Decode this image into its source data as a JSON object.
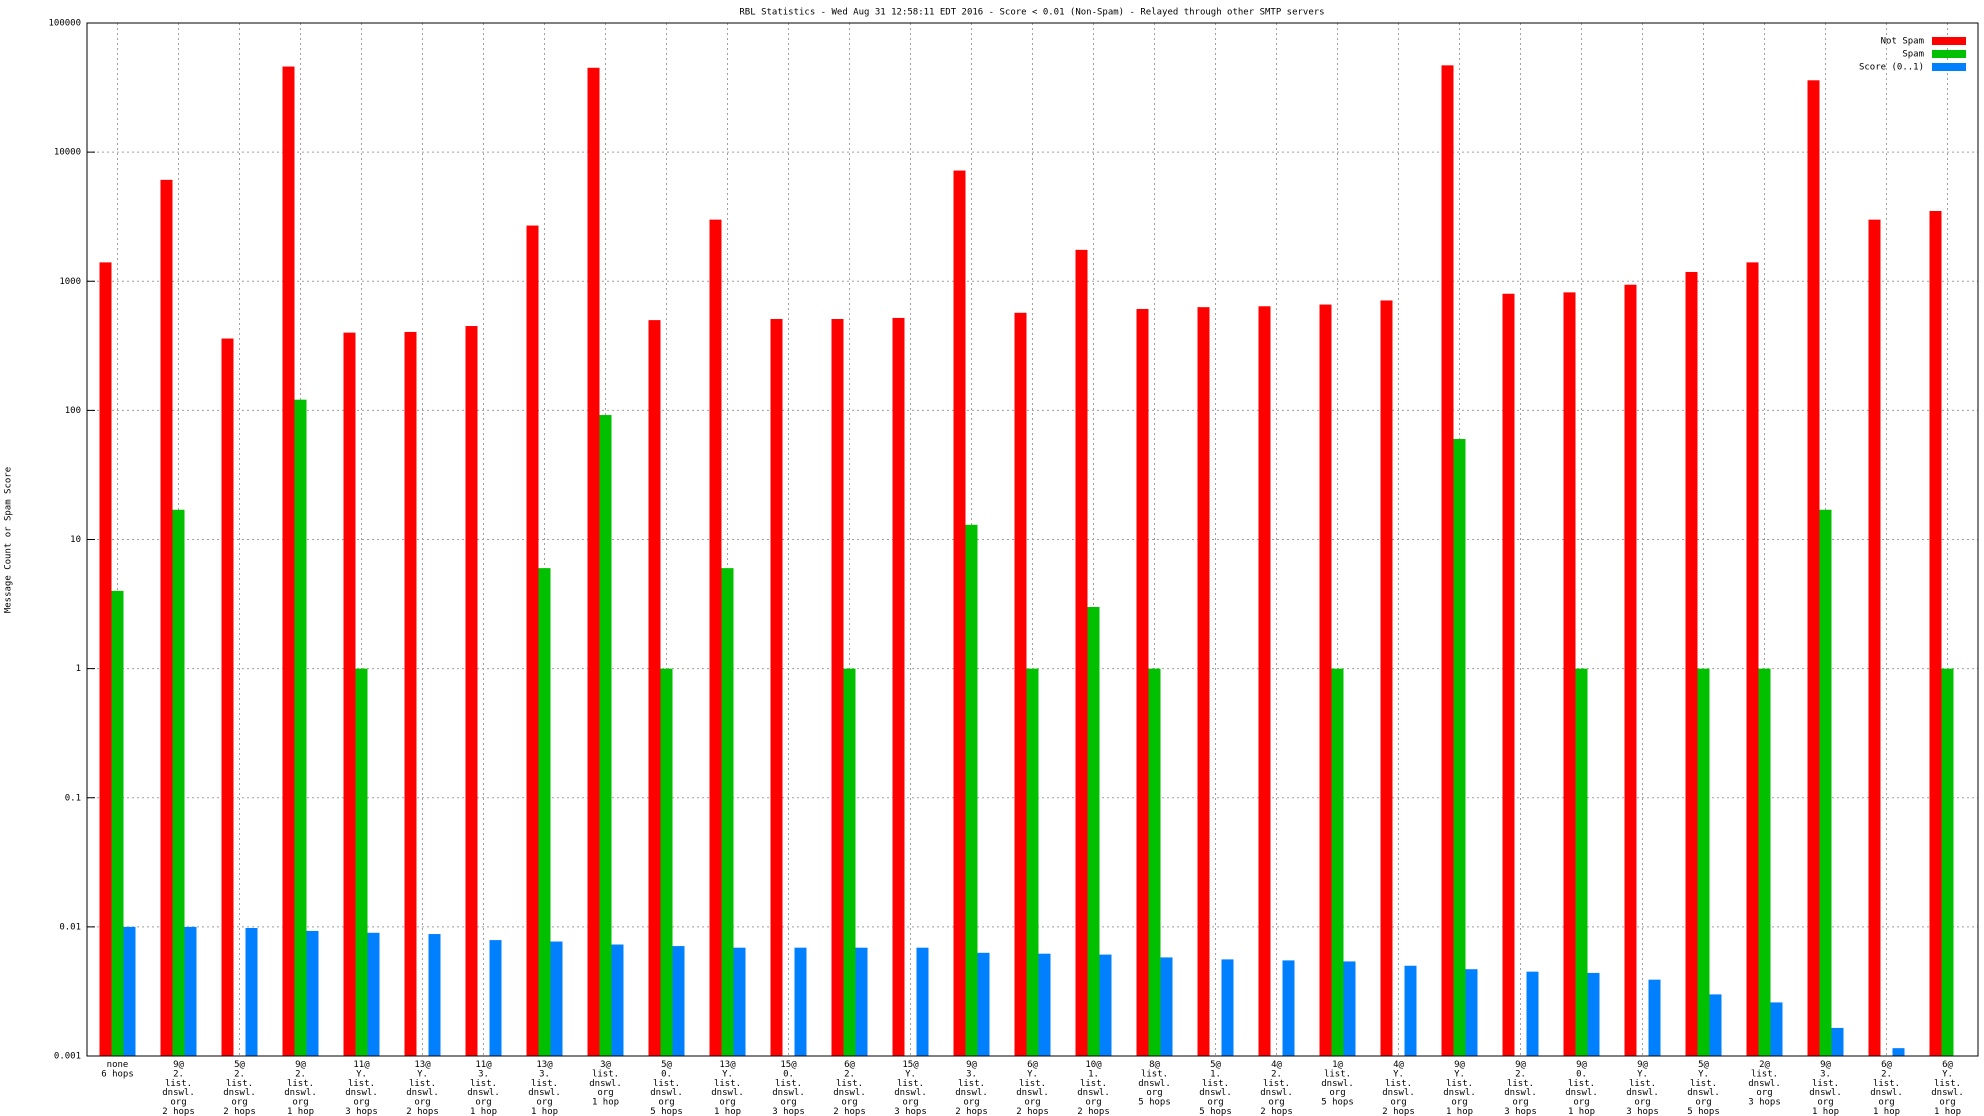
{
  "chart_data": {
    "type": "bar",
    "title": "RBL Statistics - Wed Aug 31 12:58:11 EDT 2016 - Score < 0.01 (Non-Spam) - Relayed through other SMTP servers",
    "y_label": "Message Count or Spam Score",
    "categories": [
      "none\n6 hops",
      "9@\n2.\nlist.\ndnswl.\norg\n2 hops",
      "5@\n2.\nlist.\ndnswl.\norg\n2 hops",
      "9@\n2.\nlist.\ndnswl.\norg\n1 hop",
      "11@\nY.\nlist.\ndnswl.\norg\n3 hops",
      "13@\nY.\nlist.\ndnswl.\norg\n2 hops",
      "11@\n3.\nlist.\ndnswl.\norg\n1 hop",
      "13@\n3.\nlist.\ndnswl.\norg\n1 hop",
      "3@\nlist.\ndnswl.\norg\n1 hop",
      "5@\n0.\nlist.\ndnswl.\norg\n5 hops",
      "13@\nY.\nlist.\ndnswl.\norg\n1 hop",
      "15@\n0.\nlist.\ndnswl.\norg\n3 hops",
      "6@\n2.\nlist.\ndnswl.\norg\n2 hops",
      "15@\nY.\nlist.\ndnswl.\norg\n3 hops",
      "9@\n3.\nlist.\ndnswl.\norg\n2 hops",
      "6@\nY.\nlist.\ndnswl.\norg\n2 hops",
      "10@\n1.\nlist.\ndnswl.\norg\n2 hops",
      "8@\nlist.\ndnswl.\norg\n5 hops",
      "5@\n1.\nlist.\ndnswl.\norg\n5 hops",
      "4@\n2.\nlist.\ndnswl.\norg\n2 hops",
      "1@\nlist.\ndnswl.\norg\n5 hops",
      "4@\nY.\nlist.\ndnswl.\norg\n2 hops",
      "9@\nY.\nlist.\ndnswl.\norg\n1 hop",
      "9@\n2.\nlist.\ndnswl.\norg\n3 hops",
      "9@\n0.\nlist.\ndnswl.\norg\n1 hop",
      "9@\nY.\nlist.\ndnswl.\norg\n3 hops",
      "5@\nY.\nlist.\ndnswl.\norg\n5 hops",
      "2@\nlist.\ndnswl.\norg\n3 hops",
      "9@\n3.\nlist.\ndnswl.\norg\n1 hop",
      "6@\n2.\nlist.\ndnswl.\norg\n1 hop",
      "6@\nY.\nlist.\ndnswl.\norg\n1 hop"
    ],
    "series": [
      {
        "name": "Not Spam",
        "color": "#ff0000",
        "values": [
          1400,
          6100,
          360,
          46000,
          400,
          405,
          450,
          2700,
          45000,
          500,
          3000,
          510,
          510,
          520,
          7200,
          570,
          1750,
          610,
          630,
          640,
          660,
          710,
          47000,
          800,
          820,
          940,
          1180,
          1400,
          36000,
          3000,
          3500
        ]
      },
      {
        "name": "Spam",
        "color": "#00c000",
        "values": [
          4,
          17,
          null,
          121,
          1,
          null,
          null,
          6,
          92,
          1,
          6,
          null,
          1,
          null,
          13,
          1,
          3,
          1,
          null,
          null,
          1,
          null,
          60,
          null,
          1,
          null,
          1,
          1,
          17,
          null,
          1
        ]
      },
      {
        "name": "Score (0..1)",
        "color": "#0080ff",
        "values": [
          0.01,
          0.01,
          0.0098,
          0.0093,
          0.009,
          0.0088,
          0.0079,
          0.0077,
          0.0073,
          0.0071,
          0.0069,
          0.0069,
          0.0069,
          0.0069,
          0.0063,
          0.0062,
          0.0061,
          0.0058,
          0.0056,
          0.0055,
          0.0054,
          0.005,
          0.0047,
          0.0045,
          0.0044,
          0.0039,
          0.003,
          0.0026,
          0.00165,
          0.00115,
          null
        ]
      }
    ],
    "ylim": [
      0.001,
      100000
    ],
    "yticks": [
      0.001,
      0.01,
      0.1,
      1,
      10,
      100,
      1000,
      10000,
      100000
    ],
    "ylog": true,
    "grid": true,
    "legend": "top-right"
  }
}
